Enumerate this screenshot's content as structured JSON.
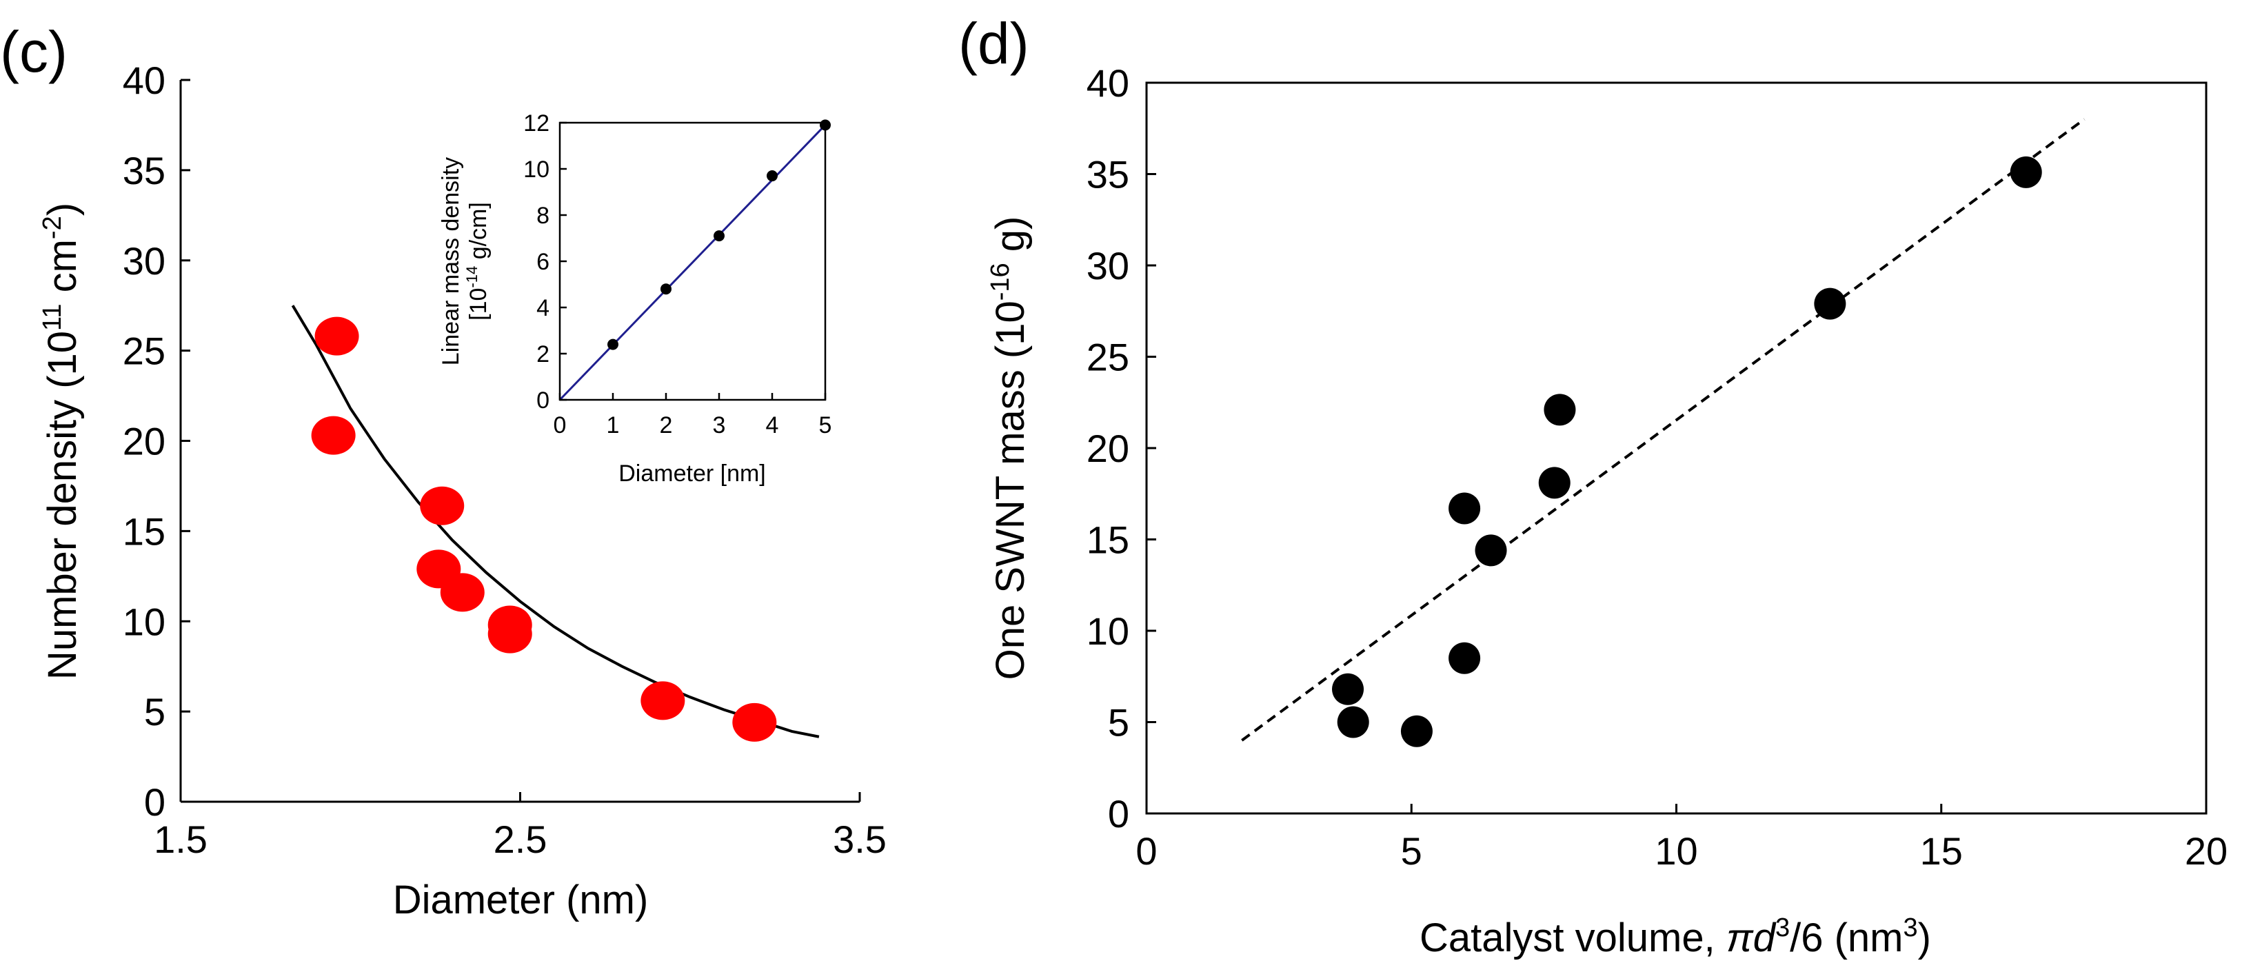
{
  "chart_data": [
    {
      "panel_label": "(c)",
      "type": "scatter",
      "xlabel": "Diameter (nm)",
      "ylabel_main": "Number density (10",
      "ylabel_sup1": "11",
      "ylabel_unit": " cm",
      "ylabel_sup2": "-2",
      "ylabel_close": ")",
      "xlim": [
        1.5,
        3.5
      ],
      "ylim": [
        0,
        40
      ],
      "xticks": [
        1.5,
        2.5,
        3.5
      ],
      "xtick_labels": [
        "1.5",
        "2.5",
        "3.5"
      ],
      "yticks": [
        0,
        5,
        10,
        15,
        20,
        25,
        30,
        35,
        40
      ],
      "ytick_labels": [
        "0",
        "5",
        "10",
        "15",
        "20",
        "25",
        "30",
        "35",
        "40"
      ],
      "marker_color": "#ff0000",
      "points": [
        {
          "x": 1.96,
          "y": 25.8
        },
        {
          "x": 1.95,
          "y": 20.3
        },
        {
          "x": 2.27,
          "y": 16.4
        },
        {
          "x": 2.26,
          "y": 12.9
        },
        {
          "x": 2.33,
          "y": 11.6
        },
        {
          "x": 2.47,
          "y": 9.8
        },
        {
          "x": 2.47,
          "y": 9.3
        },
        {
          "x": 2.92,
          "y": 5.6
        },
        {
          "x": 3.19,
          "y": 4.4
        }
      ],
      "fit_curve": {
        "color": "#000000",
        "points": [
          [
            1.83,
            27.5
          ],
          [
            1.9,
            25.3
          ],
          [
            2.0,
            21.8
          ],
          [
            2.1,
            19.0
          ],
          [
            2.2,
            16.6
          ],
          [
            2.3,
            14.5
          ],
          [
            2.4,
            12.7
          ],
          [
            2.5,
            11.1
          ],
          [
            2.6,
            9.7
          ],
          [
            2.7,
            8.5
          ],
          [
            2.8,
            7.5
          ],
          [
            2.9,
            6.6
          ],
          [
            3.0,
            5.8
          ],
          [
            3.1,
            5.1
          ],
          [
            3.2,
            4.5
          ],
          [
            3.3,
            3.9
          ],
          [
            3.38,
            3.6
          ]
        ]
      },
      "inset": {
        "type": "line",
        "xlabel": "Diameter [nm]",
        "ylabel_line1": "Linear mass density",
        "ylabel_line2_a": "[10",
        "ylabel_line2_sup": "-14",
        "ylabel_line2_b": " g/cm]",
        "xlim": [
          0,
          5
        ],
        "ylim": [
          0,
          12
        ],
        "xticks": [
          0,
          1,
          2,
          3,
          4,
          5
        ],
        "xtick_labels": [
          "0",
          "1",
          "2",
          "3",
          "4",
          "5"
        ],
        "yticks": [
          0,
          2,
          4,
          6,
          8,
          10,
          12
        ],
        "ytick_labels": [
          "0",
          "2",
          "4",
          "6",
          "8",
          "10",
          "12"
        ],
        "line_color": "#1f1f8f",
        "line": [
          [
            0,
            0
          ],
          [
            5,
            11.9
          ]
        ],
        "points": [
          {
            "x": 1,
            "y": 2.4
          },
          {
            "x": 2,
            "y": 4.8
          },
          {
            "x": 3,
            "y": 7.1
          },
          {
            "x": 4,
            "y": 9.7
          },
          {
            "x": 5,
            "y": 11.9
          }
        ]
      }
    },
    {
      "panel_label": "(d)",
      "type": "scatter",
      "xlabel_a": "Catalyst volume, ",
      "xlabel_pi": "π",
      "xlabel_d": "d",
      "xlabel_sup": "3",
      "xlabel_b": "/6 (nm",
      "xlabel_sup2": "3",
      "xlabel_c": ")",
      "ylabel_a": "One SWNT mass (10",
      "ylabel_sup": "-16",
      "ylabel_b": " g)",
      "xlim": [
        0,
        20
      ],
      "ylim": [
        0,
        40
      ],
      "xticks": [
        0,
        5,
        10,
        15,
        20
      ],
      "xtick_labels": [
        "0",
        "5",
        "10",
        "15",
        "20"
      ],
      "yticks": [
        0,
        5,
        10,
        15,
        20,
        25,
        30,
        35,
        40
      ],
      "ytick_labels": [
        "0",
        "5",
        "10",
        "15",
        "20",
        "25",
        "30",
        "35",
        "40"
      ],
      "marker_color": "#000000",
      "points": [
        {
          "x": 3.8,
          "y": 6.8
        },
        {
          "x": 3.9,
          "y": 5.0
        },
        {
          "x": 5.1,
          "y": 4.5
        },
        {
          "x": 6.0,
          "y": 8.5
        },
        {
          "x": 6.0,
          "y": 16.7
        },
        {
          "x": 6.5,
          "y": 14.4
        },
        {
          "x": 7.7,
          "y": 18.1
        },
        {
          "x": 7.8,
          "y": 22.1
        },
        {
          "x": 12.9,
          "y": 27.9
        },
        {
          "x": 16.6,
          "y": 35.1
        }
      ],
      "fit_line": {
        "style": "dashed",
        "color": "#000000",
        "points": [
          [
            1.8,
            4.0
          ],
          [
            17.7,
            38.0
          ]
        ]
      }
    }
  ]
}
